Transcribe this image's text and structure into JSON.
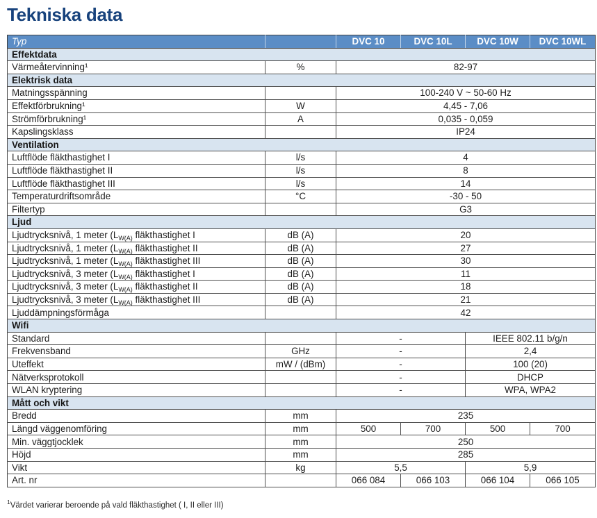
{
  "page": {
    "title": "Tekniska data",
    "footnote": {
      "sup": "1",
      "text": "Värdet varierar beroende på vald fläkthastighet ( I, II eller III)"
    }
  },
  "colors": {
    "title": "#17427c",
    "header_bg": "#5b8dc6",
    "section_bg": "#d8e4f0",
    "border": "#4d4d4d"
  },
  "table": {
    "header": {
      "type_label": "Typ",
      "unit_label": "",
      "models": [
        "DVC 10",
        "DVC 10L",
        "DVC 10W",
        "DVC 10WL"
      ]
    },
    "rows": [
      {
        "type": "section",
        "label": "Effektdata"
      },
      {
        "type": "data",
        "label": "Värmeåtervinning¹",
        "unit": "%",
        "values": [
          {
            "text": "82-97",
            "span": 4
          }
        ]
      },
      {
        "type": "section",
        "label": "Elektrisk data"
      },
      {
        "type": "data",
        "label": "Matningsspänning",
        "unit": "",
        "values": [
          {
            "text": "100-240 V ~ 50-60 Hz",
            "span": 4
          }
        ]
      },
      {
        "type": "data",
        "label": "Effektförbrukning¹",
        "unit": "W",
        "values": [
          {
            "text": "4,45 - 7,06",
            "span": 4
          }
        ]
      },
      {
        "type": "data",
        "label": "Strömförbrukning¹",
        "unit": "A",
        "values": [
          {
            "text": "0,035 - 0,059",
            "span": 4
          }
        ]
      },
      {
        "type": "data",
        "label": "Kapslingsklass",
        "unit": "",
        "values": [
          {
            "text": "IP24",
            "span": 4
          }
        ]
      },
      {
        "type": "section",
        "label": "Ventilation"
      },
      {
        "type": "data",
        "label": "Luftflöde fläkthastighet I",
        "unit": "l/s",
        "values": [
          {
            "text": "4",
            "span": 4
          }
        ]
      },
      {
        "type": "data",
        "label": "Luftflöde fläkthastighet II",
        "unit": "l/s",
        "values": [
          {
            "text": "8",
            "span": 4
          }
        ]
      },
      {
        "type": "data",
        "label": "Luftflöde fläkthastighet III",
        "unit": "l/s",
        "values": [
          {
            "text": "14",
            "span": 4
          }
        ]
      },
      {
        "type": "data",
        "label": "Temperaturdriftsområde",
        "unit": "°C",
        "values": [
          {
            "text": "-30 - 50",
            "span": 4
          }
        ]
      },
      {
        "type": "data",
        "label": "Filtertyp",
        "unit": "",
        "values": [
          {
            "text": "G3",
            "span": 4
          }
        ]
      },
      {
        "type": "section",
        "label": "Ljud"
      },
      {
        "type": "data",
        "label_parts": {
          "pre": "Ljudtrycksnivå, 1 meter (L",
          "sub": "W(A)",
          "post": " fläkthastighet I"
        },
        "unit": "dB (A)",
        "values": [
          {
            "text": "20",
            "span": 4
          }
        ]
      },
      {
        "type": "data",
        "label_parts": {
          "pre": "Ljudtrycksnivå, 1 meter (L",
          "sub": "W(A)",
          "post": " fläkthastighet II"
        },
        "unit": "dB (A)",
        "values": [
          {
            "text": "27",
            "span": 4
          }
        ]
      },
      {
        "type": "data",
        "label_parts": {
          "pre": "Ljudtrycksnivå, 1 meter (L",
          "sub": "W(A)",
          "post": " fläkthastighet III"
        },
        "unit": "dB (A)",
        "values": [
          {
            "text": "30",
            "span": 4
          }
        ]
      },
      {
        "type": "data",
        "label_parts": {
          "pre": "Ljudtrycksnivå, 3 meter (L",
          "sub": "W(A)",
          "post": " fläkthastighet I"
        },
        "unit": "dB (A)",
        "values": [
          {
            "text": "11",
            "span": 4
          }
        ]
      },
      {
        "type": "data",
        "label_parts": {
          "pre": "Ljudtrycksnivå, 3 meter (L",
          "sub": "W(A)",
          "post": " fläkthastighet II"
        },
        "unit": "dB (A)",
        "values": [
          {
            "text": "18",
            "span": 4
          }
        ]
      },
      {
        "type": "data",
        "label_parts": {
          "pre": "Ljudtrycksnivå, 3 meter (L",
          "sub": "W(A)",
          "post": " fläkthastighet III"
        },
        "unit": "dB (A)",
        "values": [
          {
            "text": "21",
            "span": 4
          }
        ]
      },
      {
        "type": "data",
        "label": "Ljuddämpningsförmåga",
        "unit": "",
        "values": [
          {
            "text": "42",
            "span": 4
          }
        ]
      },
      {
        "type": "section",
        "label": "Wifi"
      },
      {
        "type": "data",
        "label": "Standard",
        "unit": "",
        "values": [
          {
            "text": "-",
            "span": 2
          },
          {
            "text": "IEEE 802.11 b/g/n",
            "span": 2
          }
        ]
      },
      {
        "type": "data",
        "label": "Frekvensband",
        "unit": "GHz",
        "values": [
          {
            "text": "-",
            "span": 2
          },
          {
            "text": "2,4",
            "span": 2
          }
        ]
      },
      {
        "type": "data",
        "label": "Uteffekt",
        "unit": "mW / (dBm)",
        "values": [
          {
            "text": "-",
            "span": 2
          },
          {
            "text": "100 (20)",
            "span": 2
          }
        ]
      },
      {
        "type": "data",
        "label": "Nätverksprotokoll",
        "unit": "",
        "values": [
          {
            "text": "-",
            "span": 2
          },
          {
            "text": "DHCP",
            "span": 2
          }
        ]
      },
      {
        "type": "data",
        "label": "WLAN kryptering",
        "unit": "",
        "values": [
          {
            "text": "-",
            "span": 2
          },
          {
            "text": "WPA, WPA2",
            "span": 2
          }
        ]
      },
      {
        "type": "section",
        "label": "Mått och vikt"
      },
      {
        "type": "data",
        "label": "Bredd",
        "unit": "mm",
        "values": [
          {
            "text": "235",
            "span": 4
          }
        ]
      },
      {
        "type": "data",
        "label": "Längd väggenomföring",
        "unit": "mm",
        "values": [
          {
            "text": "500",
            "span": 1
          },
          {
            "text": "700",
            "span": 1
          },
          {
            "text": "500",
            "span": 1
          },
          {
            "text": "700",
            "span": 1
          }
        ]
      },
      {
        "type": "data",
        "label": "Min. väggtjocklek",
        "unit": "mm",
        "values": [
          {
            "text": "250",
            "span": 4
          }
        ]
      },
      {
        "type": "data",
        "label": "Höjd",
        "unit": "mm",
        "values": [
          {
            "text": "285",
            "span": 4
          }
        ]
      },
      {
        "type": "data",
        "label": "Vikt",
        "unit": "kg",
        "values": [
          {
            "text": "5,5",
            "span": 2
          },
          {
            "text": "5,9",
            "span": 2
          }
        ]
      },
      {
        "type": "data",
        "label": "Art. nr",
        "unit": "",
        "values": [
          {
            "text": "066 084",
            "span": 1
          },
          {
            "text": "066 103",
            "span": 1
          },
          {
            "text": "066 104",
            "span": 1
          },
          {
            "text": "066 105",
            "span": 1
          }
        ]
      }
    ]
  }
}
